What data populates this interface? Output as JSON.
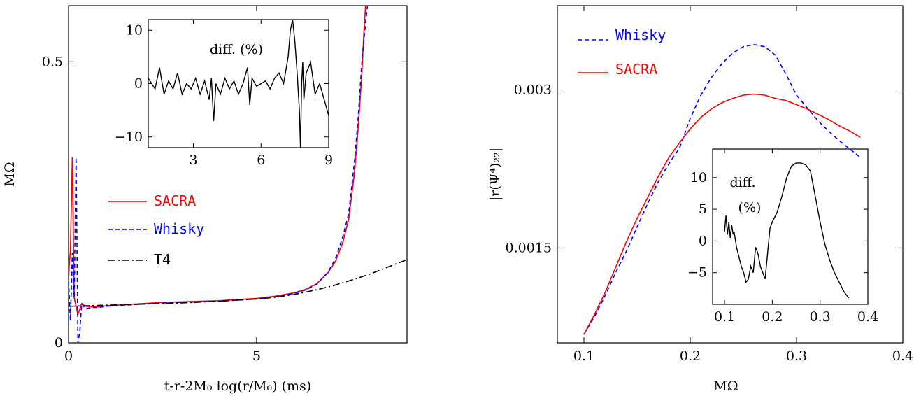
{
  "chart_data": [
    {
      "id": "left-main",
      "type": "line",
      "xlabel": "t-r-2M₀ log(r/M₀) (ms)",
      "ylabel": "MΩ",
      "xlim": [
        0,
        9
      ],
      "ylim": [
        0,
        0.6
      ],
      "xticks": [
        0,
        5
      ],
      "yticks": [
        0,
        0.5
      ],
      "xtick_labels": [
        "0",
        "5"
      ],
      "ytick_labels": [
        "0",
        "0.5"
      ],
      "legend_placement": "middle-left",
      "series": [
        {
          "name": "SACRA",
          "color": "#ff0000",
          "dash": "solid",
          "x": [
            0,
            0.05,
            0.1,
            0.15,
            0.2,
            0.25,
            0.3,
            0.35,
            0.45,
            0.6,
            0.8,
            1.0,
            1.5,
            2.0,
            2.5,
            3.0,
            3.5,
            4.0,
            4.5,
            5.0,
            5.5,
            6.0,
            6.3,
            6.6,
            6.9,
            7.1,
            7.3,
            7.45,
            7.6,
            7.7,
            7.8,
            7.85,
            7.9
          ],
          "y": [
            0.12,
            0.165,
            0.33,
            0.08,
            0.065,
            0.05,
            0.06,
            0.07,
            0.065,
            0.064,
            0.064,
            0.066,
            0.068,
            0.07,
            0.072,
            0.073,
            0.074,
            0.075,
            0.077,
            0.079,
            0.083,
            0.089,
            0.095,
            0.105,
            0.125,
            0.145,
            0.18,
            0.22,
            0.3,
            0.38,
            0.48,
            0.55,
            0.6
          ]
        },
        {
          "name": "Whisky",
          "color": "#0000ff",
          "dash": "dashed",
          "x": [
            0,
            0.05,
            0.1,
            0.15,
            0.2,
            0.25,
            0.3,
            0.35,
            0.45,
            0.6,
            0.8,
            1.0,
            1.5,
            2.0,
            2.5,
            3.0,
            3.5,
            4.0,
            4.5,
            5.0,
            5.5,
            6.0,
            6.3,
            6.6,
            6.9,
            7.1,
            7.3,
            7.45,
            7.6,
            7.7,
            7.8,
            7.9,
            7.95
          ],
          "y": [
            0.11,
            0.04,
            0.16,
            0.08,
            0.33,
            0.0,
            0.02,
            0.07,
            0.06,
            0.063,
            0.063,
            0.065,
            0.067,
            0.069,
            0.071,
            0.072,
            0.073,
            0.074,
            0.076,
            0.078,
            0.082,
            0.088,
            0.094,
            0.104,
            0.126,
            0.15,
            0.19,
            0.23,
            0.32,
            0.4,
            0.5,
            0.57,
            0.6
          ]
        },
        {
          "name": "T4",
          "color": "#000000",
          "dash": "dashdot",
          "x": [
            0,
            1,
            2,
            3,
            4,
            5,
            5.5,
            6,
            6.5,
            7,
            7.5,
            8,
            8.5,
            9
          ],
          "y": [
            0.065,
            0.067,
            0.069,
            0.071,
            0.074,
            0.078,
            0.081,
            0.086,
            0.093,
            0.101,
            0.111,
            0.122,
            0.135,
            0.148
          ]
        }
      ]
    },
    {
      "id": "left-inset",
      "type": "line",
      "annotation": "diff. (%)",
      "xlim": [
        1,
        9
      ],
      "ylim": [
        -12,
        12
      ],
      "xticks": [
        3,
        6,
        9
      ],
      "yticks": [
        10,
        0,
        -10
      ],
      "xtick_labels": [
        "3",
        "6",
        "9"
      ],
      "ytick_labels": [
        "10",
        "0",
        "−10"
      ],
      "series": [
        {
          "color": "#000000",
          "x": [
            1.0,
            1.3,
            1.5,
            1.7,
            1.9,
            2.1,
            2.3,
            2.5,
            2.7,
            2.9,
            3.1,
            3.3,
            3.5,
            3.7,
            3.8,
            3.9,
            4.0,
            4.2,
            4.4,
            4.6,
            4.8,
            5.0,
            5.2,
            5.4,
            5.5,
            5.6,
            5.8,
            6.0,
            6.2,
            6.4,
            6.6,
            6.8,
            7.0,
            7.2,
            7.3,
            7.4,
            7.5,
            7.6,
            7.7,
            7.75,
            7.8,
            7.85,
            7.9,
            8.0,
            8.2,
            8.4,
            8.6,
            8.8,
            9.0
          ],
          "y": [
            1,
            -1,
            3,
            -2,
            0.5,
            -1,
            2,
            -2,
            0,
            -1,
            1,
            -2,
            0.5,
            -3,
            1,
            -7,
            0,
            -2,
            1,
            -1,
            0.5,
            -2,
            0,
            3,
            -4,
            1,
            -0.5,
            0,
            0.5,
            -1,
            1,
            2,
            0,
            5,
            10,
            12,
            8,
            2,
            -5,
            -12,
            0,
            4,
            -3,
            2,
            4,
            -2,
            0,
            -3,
            -6
          ]
        }
      ]
    },
    {
      "id": "right-main",
      "type": "line",
      "xlabel": "MΩ",
      "ylabel": "|r(Ψ⁴)₂₂|",
      "xlim": [
        0.075,
        0.4
      ],
      "ylim": [
        0.0006,
        0.0038
      ],
      "xticks": [
        0.1,
        0.2,
        0.3,
        0.4
      ],
      "yticks": [
        0.0015,
        0.003
      ],
      "xtick_labels": [
        "0.1",
        "0.2",
        "0.3",
        "0.4"
      ],
      "ytick_labels": [
        "0.0015",
        "0.003"
      ],
      "legend_placement": "top-left",
      "series": [
        {
          "name": "Whisky",
          "color": "#0000ff",
          "dash": "dashed",
          "x": [
            0.1,
            0.11,
            0.12,
            0.13,
            0.14,
            0.15,
            0.16,
            0.17,
            0.18,
            0.19,
            0.2,
            0.21,
            0.22,
            0.23,
            0.24,
            0.25,
            0.26,
            0.27,
            0.28,
            0.29,
            0.3,
            0.31,
            0.32,
            0.33,
            0.34,
            0.35,
            0.36
          ],
          "y": [
            0.00068,
            0.00085,
            0.00105,
            0.00127,
            0.00147,
            0.0017,
            0.00192,
            0.00213,
            0.0023,
            0.00245,
            0.00273,
            0.00295,
            0.00312,
            0.00325,
            0.00335,
            0.00341,
            0.00343,
            0.00341,
            0.00333,
            0.00315,
            0.00295,
            0.00283,
            0.00271,
            0.00261,
            0.00252,
            0.00244,
            0.00236
          ]
        },
        {
          "name": "SACRA",
          "color": "#ff0000",
          "dash": "solid",
          "x": [
            0.1,
            0.11,
            0.12,
            0.13,
            0.14,
            0.15,
            0.16,
            0.17,
            0.18,
            0.19,
            0.2,
            0.21,
            0.22,
            0.23,
            0.24,
            0.25,
            0.26,
            0.27,
            0.28,
            0.29,
            0.3,
            0.31,
            0.32,
            0.33,
            0.34,
            0.35,
            0.36
          ],
          "y": [
            0.00068,
            0.00087,
            0.00108,
            0.00132,
            0.00156,
            0.00178,
            0.00198,
            0.00218,
            0.00236,
            0.0025,
            0.00263,
            0.00274,
            0.00282,
            0.00288,
            0.00292,
            0.00295,
            0.00296,
            0.00295,
            0.00292,
            0.0029,
            0.00286,
            0.00282,
            0.00277,
            0.00272,
            0.00266,
            0.00261,
            0.00255
          ]
        }
      ]
    },
    {
      "id": "right-inset",
      "type": "line",
      "annotation": [
        "diff.",
        "(%)"
      ],
      "xlim": [
        0.075,
        0.4
      ],
      "ylim": [
        -10,
        14.5
      ],
      "xticks": [
        0.1,
        0.2,
        0.3,
        0.4
      ],
      "yticks": [
        10,
        5,
        0,
        -5
      ],
      "xtick_labels": [
        "0.1",
        "0.2",
        "0.3",
        "0.4"
      ],
      "ytick_labels": [
        "10",
        "5",
        "0",
        "−5"
      ],
      "series": [
        {
          "color": "#000000",
          "x": [
            0.1,
            0.103,
            0.106,
            0.109,
            0.112,
            0.115,
            0.118,
            0.12,
            0.125,
            0.13,
            0.135,
            0.14,
            0.145,
            0.15,
            0.155,
            0.16,
            0.165,
            0.17,
            0.175,
            0.18,
            0.185,
            0.19,
            0.195,
            0.2,
            0.21,
            0.22,
            0.23,
            0.24,
            0.25,
            0.26,
            0.27,
            0.28,
            0.29,
            0.3,
            0.31,
            0.32,
            0.33,
            0.34,
            0.35,
            0.36
          ],
          "y": [
            1.5,
            4,
            1,
            3,
            0.5,
            2.5,
            1,
            1.5,
            -1,
            -2.5,
            -4,
            -5,
            -6.5,
            -6,
            -4,
            -5,
            -1,
            -2,
            -4,
            -5,
            -6,
            -2,
            2,
            3,
            4.5,
            7,
            10,
            11.8,
            12.3,
            12.3,
            12,
            11,
            7,
            3,
            -0.5,
            -3,
            -5,
            -6.5,
            -8,
            -9
          ]
        }
      ]
    }
  ],
  "legend_labels": {
    "sacra": "SACRA",
    "whisky": "Whisky",
    "t4": "T4"
  }
}
